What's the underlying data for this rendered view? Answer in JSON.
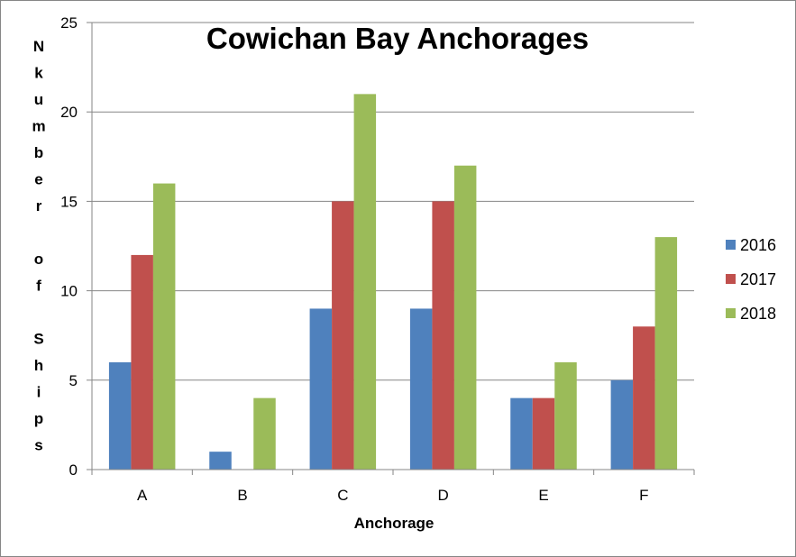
{
  "chart_data": {
    "type": "bar",
    "title": "Cowichan Bay Anchorages",
    "xlabel": "Anchorage",
    "ylabel": "Nkumber of Ships",
    "categories": [
      "A",
      "B",
      "C",
      "D",
      "E",
      "F"
    ],
    "series": [
      {
        "name": "2016",
        "color": "#4f81bd",
        "values": [
          6,
          1,
          9,
          9,
          4,
          5
        ]
      },
      {
        "name": "2017",
        "color": "#c0504d",
        "values": [
          12,
          0,
          15,
          15,
          4,
          8
        ]
      },
      {
        "name": "2018",
        "color": "#9bbb59",
        "values": [
          16,
          4,
          21,
          17,
          6,
          13
        ]
      }
    ],
    "ylim": [
      0,
      25
    ],
    "yticks": [
      0,
      5,
      10,
      15,
      20,
      25
    ],
    "grid": true,
    "legend_position": "right"
  }
}
